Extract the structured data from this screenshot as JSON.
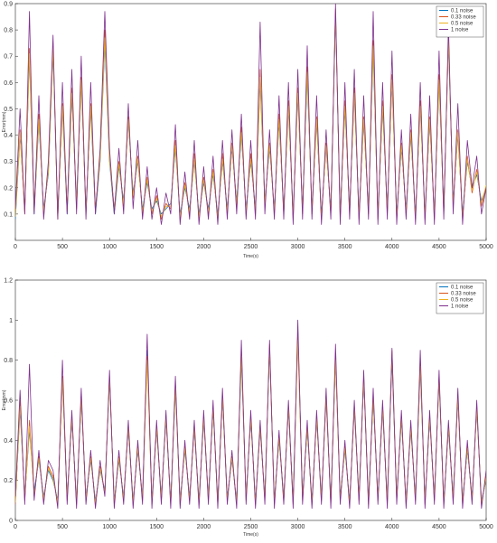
{
  "chart_data": [
    {
      "type": "line",
      "title": "",
      "xlabel": "Time(s)",
      "ylabel": "Error(mm)",
      "xlim": [
        0,
        5000
      ],
      "ylim": [
        0,
        0.9
      ],
      "xticks": [
        0,
        500,
        1000,
        1500,
        2000,
        2500,
        3000,
        3500,
        4000,
        4500,
        5000
      ],
      "yticks": [
        0.1,
        0.2,
        0.3,
        0.4,
        0.5,
        0.6,
        0.7,
        0.8,
        0.9
      ],
      "grid": false,
      "legend_position": "top-right",
      "x": [
        0,
        50,
        100,
        150,
        200,
        250,
        300,
        350,
        400,
        450,
        500,
        550,
        600,
        650,
        700,
        750,
        800,
        850,
        900,
        950,
        1000,
        1050,
        1100,
        1150,
        1200,
        1250,
        1300,
        1350,
        1400,
        1450,
        1500,
        1550,
        1600,
        1650,
        1700,
        1750,
        1800,
        1850,
        1900,
        1950,
        2000,
        2050,
        2100,
        2150,
        2200,
        2250,
        2300,
        2350,
        2400,
        2450,
        2500,
        2550,
        2600,
        2650,
        2700,
        2750,
        2800,
        2850,
        2900,
        2950,
        3000,
        3050,
        3100,
        3150,
        3200,
        3250,
        3300,
        3350,
        3400,
        3450,
        3500,
        3550,
        3600,
        3650,
        3700,
        3750,
        3800,
        3850,
        3900,
        3950,
        4000,
        4050,
        4100,
        4150,
        4200,
        4250,
        4300,
        4350,
        4400,
        4450,
        4500,
        4550,
        4600,
        4650,
        4700,
        4750,
        4800,
        4850,
        4900,
        4950,
        5000
      ],
      "series": [
        {
          "name": "0.1 noise",
          "color": "#0072BD",
          "values": [
            0.08,
            0.4,
            0.12,
            0.7,
            0.1,
            0.45,
            0.12,
            0.25,
            0.72,
            0.1,
            0.5,
            0.1,
            0.55,
            0.15,
            0.6,
            0.12,
            0.5,
            0.1,
            0.3,
            0.75,
            0.3,
            0.1,
            0.28,
            0.15,
            0.45,
            0.18,
            0.3,
            0.12,
            0.22,
            0.12,
            0.15,
            0.1,
            0.12,
            0.14,
            0.35,
            0.1,
            0.2,
            0.12,
            0.3,
            0.1,
            0.22,
            0.12,
            0.25,
            0.1,
            0.3,
            0.12,
            0.35,
            0.15,
            0.4,
            0.12,
            0.3,
            0.12,
            0.6,
            0.15,
            0.35,
            0.12,
            0.45,
            0.12,
            0.5,
            0.1,
            0.55,
            0.12,
            0.62,
            0.12,
            0.45,
            0.1,
            0.35,
            0.12,
            0.85,
            0.1,
            0.5,
            0.12,
            0.55,
            0.1,
            0.45,
            0.12,
            0.72,
            0.1,
            0.5,
            0.12,
            0.6,
            0.1,
            0.35,
            0.12,
            0.4,
            0.1,
            0.5,
            0.1,
            0.45,
            0.1,
            0.6,
            0.12,
            0.75,
            0.15,
            0.4,
            0.1,
            0.3,
            0.2,
            0.25,
            0.15,
            0.2
          ]
        },
        {
          "name": "0.33 noise",
          "color": "#D95319",
          "values": [
            0.1,
            0.42,
            0.1,
            0.73,
            0.12,
            0.48,
            0.1,
            0.27,
            0.75,
            0.08,
            0.52,
            0.12,
            0.58,
            0.12,
            0.62,
            0.1,
            0.52,
            0.12,
            0.32,
            0.8,
            0.32,
            0.12,
            0.3,
            0.13,
            0.47,
            0.16,
            0.32,
            0.1,
            0.24,
            0.1,
            0.17,
            0.08,
            0.14,
            0.12,
            0.38,
            0.08,
            0.22,
            0.1,
            0.33,
            0.08,
            0.24,
            0.1,
            0.27,
            0.08,
            0.33,
            0.1,
            0.37,
            0.12,
            0.43,
            0.1,
            0.33,
            0.1,
            0.65,
            0.13,
            0.37,
            0.1,
            0.48,
            0.1,
            0.53,
            0.08,
            0.58,
            0.1,
            0.66,
            0.1,
            0.47,
            0.08,
            0.37,
            0.1,
            0.88,
            0.08,
            0.53,
            0.1,
            0.58,
            0.08,
            0.47,
            0.1,
            0.76,
            0.08,
            0.53,
            0.1,
            0.63,
            0.08,
            0.37,
            0.1,
            0.42,
            0.08,
            0.53,
            0.08,
            0.47,
            0.08,
            0.63,
            0.1,
            0.78,
            0.13,
            0.42,
            0.08,
            0.32,
            0.18,
            0.27,
            0.13,
            0.2
          ]
        },
        {
          "name": "0.5 noise",
          "color": "#EDB120",
          "values": [
            0.09,
            0.41,
            0.11,
            0.71,
            0.11,
            0.46,
            0.11,
            0.26,
            0.73,
            0.09,
            0.51,
            0.11,
            0.56,
            0.14,
            0.61,
            0.11,
            0.51,
            0.11,
            0.31,
            0.77,
            0.31,
            0.11,
            0.29,
            0.14,
            0.46,
            0.17,
            0.31,
            0.11,
            0.23,
            0.11,
            0.16,
            0.09,
            0.13,
            0.13,
            0.36,
            0.09,
            0.21,
            0.11,
            0.31,
            0.09,
            0.23,
            0.11,
            0.26,
            0.09,
            0.31,
            0.11,
            0.36,
            0.14,
            0.41,
            0.11,
            0.31,
            0.11,
            0.62,
            0.14,
            0.36,
            0.11,
            0.46,
            0.11,
            0.51,
            0.09,
            0.56,
            0.11,
            0.64,
            0.11,
            0.46,
            0.09,
            0.36,
            0.11,
            0.86,
            0.09,
            0.51,
            0.11,
            0.56,
            0.09,
            0.46,
            0.11,
            0.74,
            0.09,
            0.51,
            0.11,
            0.61,
            0.09,
            0.36,
            0.11,
            0.41,
            0.09,
            0.51,
            0.09,
            0.46,
            0.09,
            0.61,
            0.11,
            0.76,
            0.14,
            0.41,
            0.09,
            0.31,
            0.19,
            0.26,
            0.14,
            0.21
          ]
        },
        {
          "name": "1 noise",
          "color": "#7E2F8E",
          "values": [
            0.12,
            0.5,
            0.1,
            0.87,
            0.1,
            0.55,
            0.08,
            0.3,
            0.78,
            0.08,
            0.6,
            0.1,
            0.65,
            0.1,
            0.7,
            0.08,
            0.6,
            0.1,
            0.35,
            0.87,
            0.35,
            0.1,
            0.35,
            0.1,
            0.52,
            0.12,
            0.38,
            0.08,
            0.28,
            0.08,
            0.2,
            0.06,
            0.18,
            0.1,
            0.44,
            0.06,
            0.26,
            0.08,
            0.38,
            0.06,
            0.28,
            0.08,
            0.32,
            0.06,
            0.38,
            0.08,
            0.42,
            0.1,
            0.48,
            0.08,
            0.38,
            0.08,
            0.83,
            0.1,
            0.42,
            0.08,
            0.55,
            0.08,
            0.6,
            0.06,
            0.65,
            0.08,
            0.74,
            0.08,
            0.55,
            0.06,
            0.42,
            0.08,
            0.9,
            0.06,
            0.6,
            0.08,
            0.65,
            0.06,
            0.55,
            0.08,
            0.87,
            0.06,
            0.6,
            0.08,
            0.72,
            0.06,
            0.42,
            0.08,
            0.48,
            0.06,
            0.6,
            0.06,
            0.55,
            0.06,
            0.72,
            0.08,
            0.82,
            0.1,
            0.52,
            0.06,
            0.38,
            0.2,
            0.32,
            0.1,
            0.2
          ]
        }
      ]
    },
    {
      "type": "line",
      "title": "",
      "xlabel": "Time(s)",
      "ylabel": "Error(mm)",
      "xlim": [
        0,
        5000
      ],
      "ylim": [
        0,
        1.2
      ],
      "xticks": [
        0,
        500,
        1000,
        1500,
        2000,
        2500,
        3000,
        3500,
        4000,
        4500,
        5000
      ],
      "yticks": [
        0,
        0.2,
        0.4,
        0.6,
        0.8,
        1,
        1.2
      ],
      "grid": false,
      "legend_position": "top-right",
      "x": [
        0,
        50,
        100,
        150,
        200,
        250,
        300,
        350,
        400,
        450,
        500,
        550,
        600,
        650,
        700,
        750,
        800,
        850,
        900,
        950,
        1000,
        1050,
        1100,
        1150,
        1200,
        1250,
        1300,
        1350,
        1400,
        1450,
        1500,
        1550,
        1600,
        1650,
        1700,
        1750,
        1800,
        1850,
        1900,
        1950,
        2000,
        2050,
        2100,
        2150,
        2200,
        2250,
        2300,
        2350,
        2400,
        2450,
        2500,
        2550,
        2600,
        2650,
        2700,
        2750,
        2800,
        2850,
        2900,
        2950,
        3000,
        3050,
        3100,
        3150,
        3200,
        3250,
        3300,
        3350,
        3400,
        3450,
        3500,
        3550,
        3600,
        3650,
        3700,
        3750,
        3800,
        3850,
        3900,
        3950,
        4000,
        4050,
        4100,
        4150,
        4200,
        4250,
        4300,
        4350,
        4400,
        4450,
        4500,
        4550,
        4600,
        4650,
        4700,
        4750,
        4800,
        4850,
        4900,
        4950,
        5000
      ],
      "series": [
        {
          "name": "0.1 noise",
          "color": "#0072BD",
          "values": [
            0.1,
            0.55,
            0.12,
            0.45,
            0.15,
            0.3,
            0.12,
            0.25,
            0.2,
            0.1,
            0.7,
            0.12,
            0.5,
            0.1,
            0.6,
            0.12,
            0.3,
            0.1,
            0.25,
            0.15,
            0.7,
            0.1,
            0.3,
            0.12,
            0.45,
            0.1,
            0.35,
            0.12,
            0.85,
            0.1,
            0.45,
            0.12,
            0.5,
            0.1,
            0.65,
            0.1,
            0.35,
            0.12,
            0.45,
            0.1,
            0.5,
            0.12,
            0.55,
            0.1,
            0.6,
            0.12,
            0.3,
            0.1,
            0.8,
            0.12,
            0.5,
            0.1,
            0.45,
            0.12,
            0.85,
            0.1,
            0.4,
            0.12,
            0.55,
            0.1,
            0.95,
            0.12,
            0.45,
            0.1,
            0.5,
            0.12,
            0.6,
            0.1,
            0.8,
            0.12,
            0.35,
            0.1,
            0.55,
            0.12,
            0.7,
            0.1,
            0.6,
            0.12,
            0.55,
            0.1,
            0.8,
            0.12,
            0.5,
            0.1,
            0.45,
            0.12,
            0.75,
            0.1,
            0.5,
            0.12,
            0.7,
            0.1,
            0.45,
            0.12,
            0.6,
            0.1,
            0.35,
            0.12,
            0.55,
            0.1,
            0.2
          ]
        },
        {
          "name": "0.33 noise",
          "color": "#D95319",
          "values": [
            0.08,
            0.6,
            0.1,
            0.5,
            0.12,
            0.32,
            0.1,
            0.27,
            0.22,
            0.08,
            0.72,
            0.1,
            0.52,
            0.08,
            0.62,
            0.1,
            0.32,
            0.08,
            0.27,
            0.13,
            0.72,
            0.08,
            0.32,
            0.1,
            0.47,
            0.08,
            0.37,
            0.1,
            0.82,
            0.08,
            0.47,
            0.1,
            0.52,
            0.08,
            0.68,
            0.08,
            0.37,
            0.1,
            0.47,
            0.08,
            0.52,
            0.1,
            0.57,
            0.08,
            0.62,
            0.1,
            0.32,
            0.08,
            0.85,
            0.1,
            0.52,
            0.08,
            0.47,
            0.1,
            0.88,
            0.08,
            0.42,
            0.1,
            0.57,
            0.08,
            0.92,
            0.1,
            0.47,
            0.08,
            0.52,
            0.1,
            0.62,
            0.08,
            0.82,
            0.1,
            0.37,
            0.08,
            0.57,
            0.1,
            0.72,
            0.08,
            0.62,
            0.1,
            0.57,
            0.08,
            0.85,
            0.1,
            0.52,
            0.08,
            0.47,
            0.1,
            0.8,
            0.08,
            0.52,
            0.1,
            0.72,
            0.08,
            0.47,
            0.1,
            0.62,
            0.08,
            0.37,
            0.1,
            0.57,
            0.08,
            0.22
          ]
        },
        {
          "name": "0.5 noise",
          "color": "#EDB120",
          "values": [
            0.09,
            0.57,
            0.11,
            0.47,
            0.13,
            0.31,
            0.11,
            0.26,
            0.21,
            0.09,
            0.71,
            0.11,
            0.51,
            0.09,
            0.61,
            0.11,
            0.31,
            0.09,
            0.26,
            0.14,
            0.71,
            0.09,
            0.31,
            0.11,
            0.46,
            0.09,
            0.36,
            0.11,
            0.8,
            0.09,
            0.46,
            0.11,
            0.51,
            0.09,
            0.66,
            0.09,
            0.36,
            0.11,
            0.46,
            0.09,
            0.51,
            0.11,
            0.56,
            0.09,
            0.61,
            0.11,
            0.31,
            0.09,
            0.82,
            0.11,
            0.51,
            0.09,
            0.46,
            0.11,
            0.86,
            0.09,
            0.41,
            0.11,
            0.56,
            0.09,
            0.9,
            0.11,
            0.46,
            0.09,
            0.51,
            0.11,
            0.61,
            0.09,
            0.8,
            0.11,
            0.36,
            0.09,
            0.56,
            0.11,
            0.71,
            0.09,
            0.61,
            0.11,
            0.56,
            0.09,
            0.82,
            0.11,
            0.51,
            0.09,
            0.46,
            0.11,
            0.77,
            0.09,
            0.51,
            0.11,
            0.71,
            0.09,
            0.46,
            0.11,
            0.61,
            0.09,
            0.36,
            0.11,
            0.56,
            0.09,
            0.21
          ]
        },
        {
          "name": "1 noise",
          "color": "#7E2F8E",
          "values": [
            0.12,
            0.65,
            0.08,
            0.78,
            0.1,
            0.35,
            0.08,
            0.3,
            0.25,
            0.06,
            0.8,
            0.08,
            0.55,
            0.06,
            0.66,
            0.08,
            0.35,
            0.06,
            0.3,
            0.12,
            0.75,
            0.06,
            0.35,
            0.08,
            0.5,
            0.06,
            0.4,
            0.08,
            0.93,
            0.06,
            0.5,
            0.08,
            0.55,
            0.06,
            0.72,
            0.06,
            0.4,
            0.08,
            0.5,
            0.06,
            0.55,
            0.08,
            0.6,
            0.06,
            0.66,
            0.08,
            0.35,
            0.06,
            0.9,
            0.08,
            0.55,
            0.06,
            0.5,
            0.08,
            0.9,
            0.06,
            0.45,
            0.08,
            0.6,
            0.06,
            1.0,
            0.08,
            0.5,
            0.06,
            0.55,
            0.08,
            0.66,
            0.06,
            0.88,
            0.08,
            0.4,
            0.06,
            0.6,
            0.08,
            0.75,
            0.06,
            0.66,
            0.08,
            0.6,
            0.06,
            0.86,
            0.08,
            0.55,
            0.06,
            0.5,
            0.08,
            0.85,
            0.06,
            0.55,
            0.08,
            0.75,
            0.06,
            0.5,
            0.08,
            0.66,
            0.06,
            0.4,
            0.08,
            0.6,
            0.06,
            0.25
          ]
        }
      ]
    }
  ]
}
